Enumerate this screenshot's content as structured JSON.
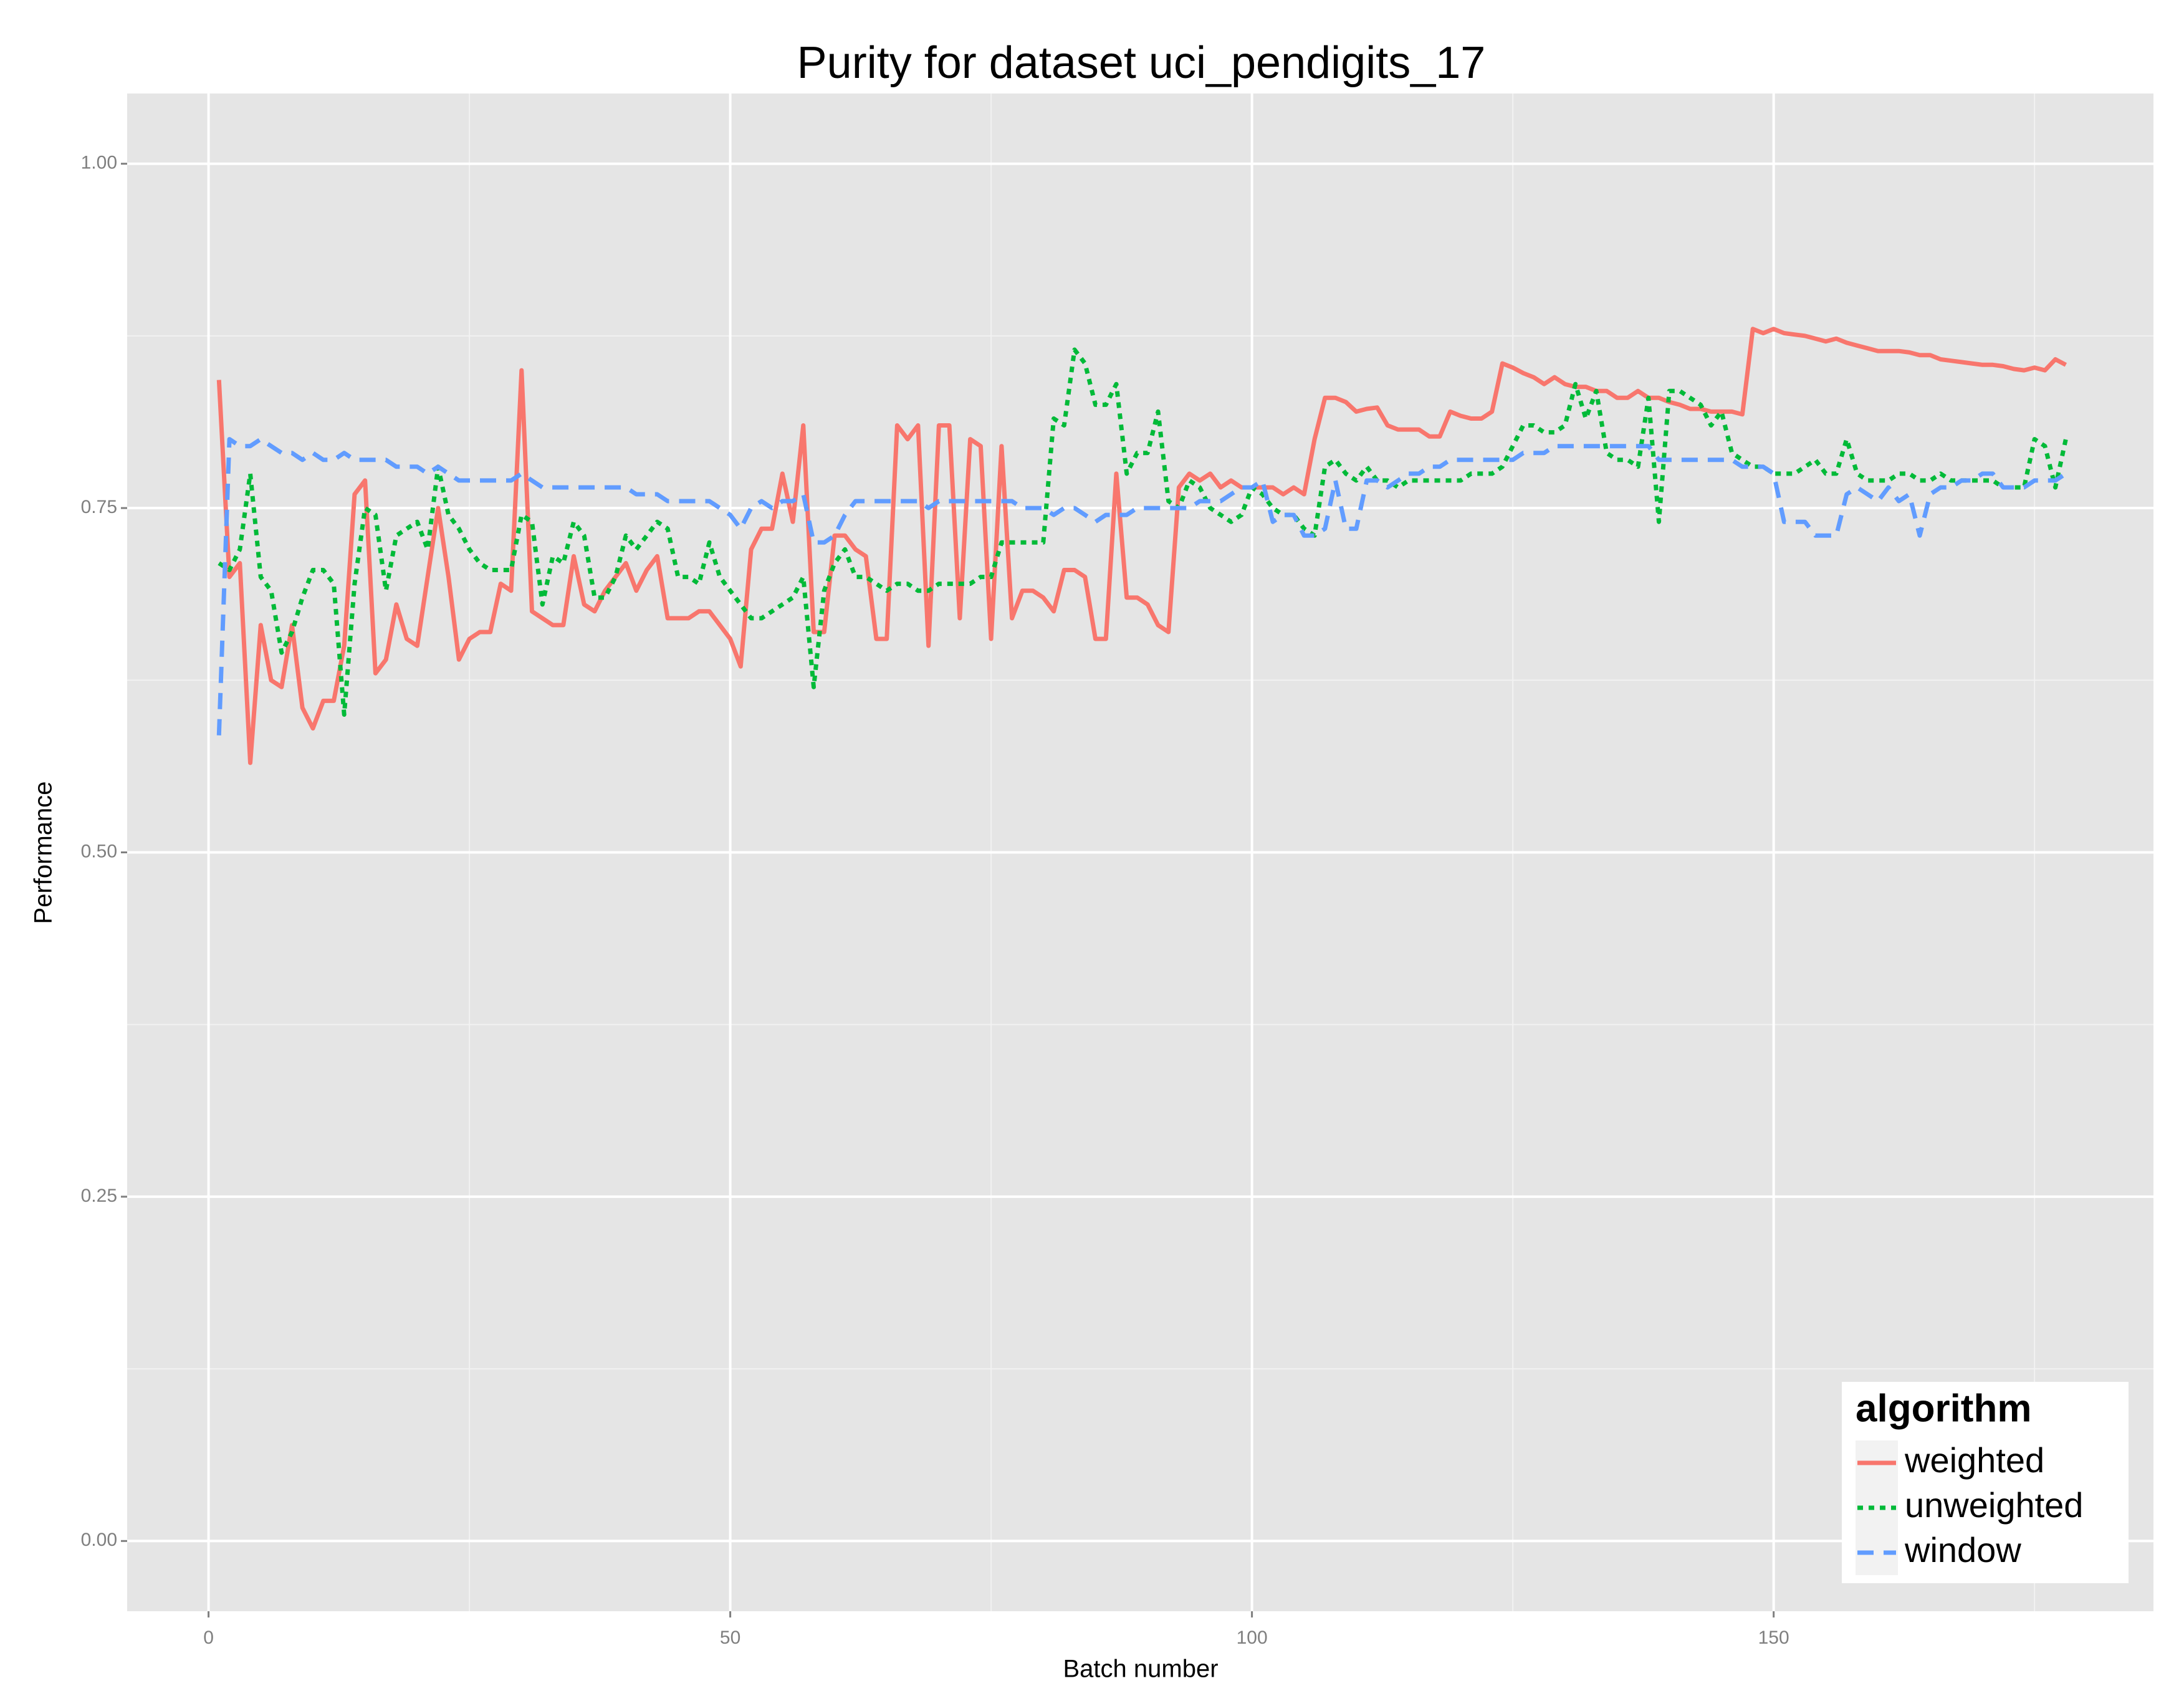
{
  "chart_data": {
    "type": "line",
    "title": "Purity for dataset uci_pendigits_17",
    "x_label": "Batch number",
    "y_label": "Performance",
    "x": [
      1,
      2,
      3,
      4,
      5,
      6,
      7,
      8,
      9,
      10,
      11,
      12,
      13,
      14,
      15,
      16,
      17,
      18,
      19,
      20,
      21,
      22,
      23,
      24,
      25,
      26,
      27,
      28,
      29,
      30,
      31,
      32,
      33,
      34,
      35,
      36,
      37,
      38,
      39,
      40,
      41,
      42,
      43,
      44,
      45,
      46,
      47,
      48,
      49,
      50,
      51,
      52,
      53,
      54,
      55,
      56,
      57,
      58,
      59,
      60,
      61,
      62,
      63,
      64,
      65,
      66,
      67,
      68,
      69,
      70,
      71,
      72,
      73,
      74,
      75,
      76,
      77,
      78,
      79,
      80,
      81,
      82,
      83,
      84,
      85,
      86,
      87,
      88,
      89,
      90,
      91,
      92,
      93,
      94,
      95,
      96,
      97,
      98,
      99,
      100,
      101,
      102,
      103,
      104,
      105,
      106,
      107,
      108,
      109,
      110,
      111,
      112,
      113,
      114,
      115,
      116,
      117,
      118,
      119,
      120,
      121,
      122,
      123,
      124,
      125,
      126,
      127,
      128,
      129,
      130,
      131,
      132,
      133,
      134,
      135,
      136,
      137,
      138,
      139,
      140,
      141,
      142,
      143,
      144,
      145,
      146,
      147,
      148,
      149,
      150,
      151,
      152,
      153,
      154,
      155,
      156,
      157,
      158,
      159,
      160,
      161,
      162,
      163,
      164,
      165,
      166,
      167,
      168,
      169,
      170,
      171,
      172,
      173,
      174,
      175,
      176,
      177,
      178
    ],
    "series": [
      {
        "name": "weighted",
        "color": "#f8766d",
        "dash": "solid",
        "values": [
          0.843,
          0.7,
          0.71,
          0.565,
          0.665,
          0.625,
          0.62,
          0.665,
          0.605,
          0.59,
          0.61,
          0.61,
          0.65,
          0.76,
          0.77,
          0.63,
          0.64,
          0.68,
          0.655,
          0.65,
          0.7,
          0.75,
          0.7,
          0.64,
          0.655,
          0.66,
          0.66,
          0.695,
          0.69,
          0.85,
          0.675,
          0.67,
          0.665,
          0.665,
          0.715,
          0.68,
          0.675,
          0.69,
          0.7,
          0.71,
          0.69,
          0.705,
          0.715,
          0.67,
          0.67,
          0.67,
          0.675,
          0.675,
          0.665,
          0.655,
          0.635,
          0.72,
          0.735,
          0.735,
          0.775,
          0.74,
          0.81,
          0.66,
          0.66,
          0.73,
          0.73,
          0.72,
          0.715,
          0.655,
          0.655,
          0.81,
          0.8,
          0.81,
          0.65,
          0.81,
          0.81,
          0.67,
          0.8,
          0.795,
          0.655,
          0.795,
          0.67,
          0.69,
          0.69,
          0.685,
          0.675,
          0.705,
          0.705,
          0.7,
          0.655,
          0.655,
          0.775,
          0.685,
          0.685,
          0.68,
          0.665,
          0.66,
          0.765,
          0.775,
          0.77,
          0.775,
          0.765,
          0.77,
          0.765,
          0.765,
          0.765,
          0.765,
          0.76,
          0.765,
          0.76,
          0.8,
          0.83,
          0.83,
          0.827,
          0.82,
          0.822,
          0.823,
          0.81,
          0.807,
          0.807,
          0.807,
          0.802,
          0.802,
          0.82,
          0.817,
          0.815,
          0.815,
          0.82,
          0.855,
          0.852,
          0.848,
          0.845,
          0.84,
          0.845,
          0.84,
          0.838,
          0.838,
          0.835,
          0.835,
          0.83,
          0.83,
          0.835,
          0.83,
          0.83,
          0.827,
          0.825,
          0.822,
          0.822,
          0.82,
          0.82,
          0.82,
          0.818,
          0.88,
          0.877,
          0.88,
          0.877,
          0.876,
          0.875,
          0.873,
          0.871,
          0.873,
          0.87,
          0.868,
          0.866,
          0.864,
          0.864,
          0.864,
          0.863,
          0.861,
          0.861,
          0.858,
          0.857,
          0.856,
          0.855,
          0.854,
          0.854,
          0.853,
          0.851,
          0.85,
          0.852,
          0.85,
          0.858,
          0.854
        ]
      },
      {
        "name": "unweighted",
        "color": "#00ba38",
        "dash": "dotted",
        "values": [
          0.71,
          0.705,
          0.72,
          0.775,
          0.7,
          0.69,
          0.645,
          0.66,
          0.685,
          0.705,
          0.705,
          0.695,
          0.6,
          0.695,
          0.75,
          0.745,
          0.69,
          0.73,
          0.735,
          0.74,
          0.72,
          0.78,
          0.745,
          0.735,
          0.72,
          0.71,
          0.705,
          0.705,
          0.705,
          0.745,
          0.74,
          0.68,
          0.715,
          0.71,
          0.74,
          0.73,
          0.685,
          0.685,
          0.7,
          0.73,
          0.72,
          0.73,
          0.74,
          0.735,
          0.7,
          0.7,
          0.695,
          0.725,
          0.7,
          0.69,
          0.68,
          0.67,
          0.67,
          0.675,
          0.68,
          0.685,
          0.7,
          0.62,
          0.69,
          0.71,
          0.72,
          0.7,
          0.7,
          0.695,
          0.69,
          0.695,
          0.695,
          0.69,
          0.69,
          0.695,
          0.695,
          0.695,
          0.695,
          0.7,
          0.7,
          0.725,
          0.725,
          0.725,
          0.725,
          0.725,
          0.815,
          0.81,
          0.865,
          0.855,
          0.825,
          0.825,
          0.84,
          0.775,
          0.79,
          0.79,
          0.82,
          0.755,
          0.75,
          0.77,
          0.765,
          0.75,
          0.745,
          0.74,
          0.745,
          0.765,
          0.76,
          0.75,
          0.745,
          0.745,
          0.735,
          0.73,
          0.78,
          0.785,
          0.775,
          0.77,
          0.78,
          0.77,
          0.77,
          0.765,
          0.77,
          0.77,
          0.77,
          0.77,
          0.77,
          0.77,
          0.775,
          0.775,
          0.775,
          0.78,
          0.795,
          0.81,
          0.81,
          0.805,
          0.805,
          0.81,
          0.84,
          0.815,
          0.835,
          0.79,
          0.785,
          0.785,
          0.78,
          0.83,
          0.74,
          0.835,
          0.835,
          0.83,
          0.825,
          0.81,
          0.82,
          0.79,
          0.785,
          0.78,
          0.78,
          0.775,
          0.775,
          0.775,
          0.78,
          0.785,
          0.775,
          0.775,
          0.8,
          0.775,
          0.77,
          0.77,
          0.77,
          0.775,
          0.775,
          0.77,
          0.77,
          0.775,
          0.77,
          0.77,
          0.77,
          0.77,
          0.77,
          0.765,
          0.765,
          0.765,
          0.8,
          0.795,
          0.765,
          0.8
        ]
      },
      {
        "name": "window",
        "color": "#619cff",
        "dash": "dashed",
        "values": [
          0.585,
          0.8,
          0.795,
          0.795,
          0.8,
          0.795,
          0.79,
          0.79,
          0.785,
          0.79,
          0.785,
          0.785,
          0.79,
          0.785,
          0.785,
          0.785,
          0.785,
          0.78,
          0.78,
          0.78,
          0.775,
          0.78,
          0.775,
          0.77,
          0.77,
          0.77,
          0.77,
          0.77,
          0.77,
          0.775,
          0.77,
          0.765,
          0.765,
          0.765,
          0.765,
          0.765,
          0.765,
          0.765,
          0.765,
          0.765,
          0.76,
          0.76,
          0.76,
          0.755,
          0.755,
          0.755,
          0.755,
          0.755,
          0.75,
          0.745,
          0.735,
          0.75,
          0.755,
          0.75,
          0.755,
          0.755,
          0.76,
          0.725,
          0.725,
          0.73,
          0.745,
          0.755,
          0.755,
          0.755,
          0.755,
          0.755,
          0.755,
          0.755,
          0.75,
          0.755,
          0.755,
          0.755,
          0.755,
          0.755,
          0.755,
          0.755,
          0.755,
          0.75,
          0.75,
          0.75,
          0.745,
          0.75,
          0.75,
          0.745,
          0.74,
          0.745,
          0.745,
          0.745,
          0.75,
          0.75,
          0.75,
          0.75,
          0.75,
          0.75,
          0.755,
          0.755,
          0.755,
          0.76,
          0.765,
          0.765,
          0.77,
          0.74,
          0.745,
          0.745,
          0.73,
          0.73,
          0.735,
          0.77,
          0.735,
          0.735,
          0.77,
          0.77,
          0.765,
          0.77,
          0.775,
          0.775,
          0.78,
          0.78,
          0.785,
          0.785,
          0.785,
          0.785,
          0.785,
          0.785,
          0.785,
          0.79,
          0.79,
          0.79,
          0.795,
          0.795,
          0.795,
          0.795,
          0.795,
          0.795,
          0.795,
          0.795,
          0.795,
          0.795,
          0.785,
          0.785,
          0.785,
          0.785,
          0.785,
          0.785,
          0.785,
          0.785,
          0.78,
          0.78,
          0.78,
          0.775,
          0.74,
          0.74,
          0.74,
          0.73,
          0.73,
          0.73,
          0.76,
          0.765,
          0.76,
          0.755,
          0.765,
          0.755,
          0.76,
          0.73,
          0.76,
          0.765,
          0.765,
          0.77,
          0.77,
          0.775,
          0.775,
          0.765,
          0.765,
          0.765,
          0.77,
          0.77,
          0.77,
          0.775
        ]
      }
    ],
    "xlim": [
      -7.8,
      186.4
    ],
    "ylim": [
      -0.051,
      1.051
    ],
    "xticks": [
      0,
      50,
      100,
      150
    ],
    "yticks": [
      {
        "value": 0,
        "label": "0.00"
      },
      {
        "value": 0.25,
        "label": "0.25"
      },
      {
        "value": 0.5,
        "label": "0.50"
      },
      {
        "value": 0.75,
        "label": "0.75"
      },
      {
        "value": 1,
        "label": "1.00"
      }
    ],
    "grid": true,
    "legend_title": "algorithm",
    "legend_position": "bottom-right"
  }
}
